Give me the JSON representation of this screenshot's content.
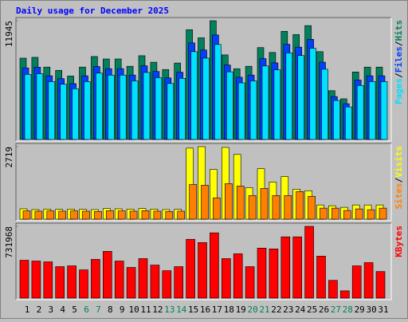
{
  "title": "Daily usage for December 2025",
  "separator": "/",
  "chart_data": [
    {
      "type": "bar",
      "ylim": [
        0,
        11945
      ],
      "yticks": [
        11945
      ],
      "series": [
        {
          "name": "Hits",
          "color": "#00805c",
          "values": [
            8180,
            8262,
            7280,
            6953,
            6380,
            7280,
            8344,
            8098,
            8098,
            7362,
            8425,
            7771,
            7035,
            7689,
            11043,
            10225,
            11945,
            8507,
            7117,
            7362,
            9243,
            8753,
            10879,
            10552,
            11452,
            8834,
            4908,
            4090,
            6789,
            7280,
            7280
          ]
        },
        {
          "name": "Files",
          "color": "#0040ff",
          "values": [
            7198,
            7271,
            6406,
            6119,
            5614,
            6406,
            7343,
            7126,
            7126,
            6479,
            7414,
            6838,
            6191,
            6766,
            9718,
            8998,
            10512,
            7486,
            6263,
            6479,
            8134,
            7703,
            9574,
            9286,
            10078,
            7774,
            4319,
            3599,
            5974,
            6406,
            6406
          ]
        },
        {
          "name": "Pages",
          "color": "#00e0ff",
          "values": [
            6544,
            6610,
            5824,
            5562,
            5104,
            5824,
            6675,
            6478,
            6478,
            5890,
            6740,
            6217,
            5628,
            6151,
            8834,
            8180,
            9556,
            6806,
            5694,
            5890,
            7394,
            7002,
            8703,
            8442,
            9162,
            7067,
            3926,
            3272,
            5431,
            5824,
            5824
          ]
        }
      ]
    },
    {
      "type": "bar",
      "ylim": [
        0,
        2719
      ],
      "yticks": [
        2719
      ],
      "series": [
        {
          "name": "Visits",
          "color": "#ffff00",
          "values": [
            390,
            360,
            380,
            370,
            380,
            370,
            360,
            400,
            390,
            380,
            400,
            380,
            360,
            370,
            2664,
            2719,
            1865,
            2690,
            2427,
            1184,
            1894,
            1391,
            1598,
            1125,
            1066,
            533,
            503,
            444,
            533,
            533,
            533
          ]
        },
        {
          "name": "Sites",
          "color": "#ff8000",
          "values": [
            310,
            300,
            310,
            300,
            310,
            300,
            290,
            320,
            310,
            300,
            320,
            300,
            290,
            300,
            1302,
            1273,
            800,
            1332,
            1243,
            888,
            1154,
            888,
            888,
            1036,
            858,
            414,
            414,
            326,
            385,
            355,
            414
          ]
        }
      ]
    },
    {
      "type": "bar",
      "ylim": [
        0,
        731968
      ],
      "yticks": [
        731968
      ],
      "categories": [
        "1",
        "2",
        "3",
        "4",
        "5",
        "6",
        "7",
        "8",
        "9",
        "10",
        "11",
        "12",
        "13",
        "14",
        "15",
        "16",
        "17",
        "18",
        "19",
        "20",
        "21",
        "22",
        "23",
        "24",
        "25",
        "26",
        "27",
        "28",
        "29",
        "30",
        "31"
      ],
      "weekends": [
        5,
        6,
        12,
        13,
        19,
        20,
        26,
        27
      ],
      "label_color": "#000000",
      "weekend_color": "#00805c",
      "series": [
        {
          "name": "KBytes",
          "color": "#ff0000",
          "values": [
            386000,
            378000,
            370000,
            321000,
            329000,
            288000,
            395000,
            477000,
            378000,
            313000,
            403000,
            337000,
            280000,
            321000,
            600000,
            567000,
            666000,
            403000,
            452000,
            321000,
            510000,
            502000,
            625000,
            625000,
            731968,
            428000,
            181000,
            74000,
            329000,
            362000,
            271000
          ]
        }
      ]
    }
  ]
}
